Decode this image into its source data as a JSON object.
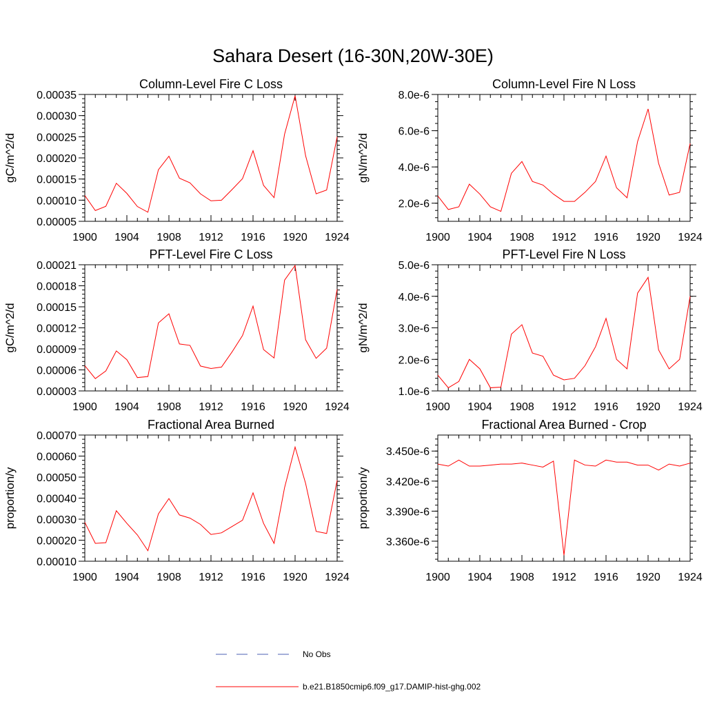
{
  "figure": {
    "title": "Sahara Desert (16-30N,20W-30E)"
  },
  "legend": {
    "items": [
      {
        "label": "No Obs",
        "color": "#4a5fb3",
        "style": "dashed"
      },
      {
        "label": "b.e21.B1850cmip6.f09_g17.DAMIP-hist-ghg.002",
        "color": "#ff0000",
        "style": "solid"
      }
    ]
  },
  "chart_data": [
    {
      "type": "line",
      "title": "Column-Level Fire C Loss",
      "ylabel": "gC/m^2/d",
      "xlim": [
        1900,
        1924
      ],
      "ylim": [
        5e-05,
        0.00035
      ],
      "xticks": [
        1900,
        1904,
        1908,
        1912,
        1916,
        1920,
        1924
      ],
      "yticks": [
        5e-05,
        0.0001,
        0.00015,
        0.0002,
        0.00025,
        0.0003,
        0.00035
      ],
      "ytick_labels": [
        "0.00005",
        "0.00010",
        "0.00015",
        "0.00020",
        "0.00025",
        "0.00030",
        "0.00035"
      ],
      "x": [
        1900,
        1901,
        1902,
        1903,
        1904,
        1905,
        1906,
        1907,
        1908,
        1909,
        1910,
        1911,
        1912,
        1913,
        1914,
        1915,
        1916,
        1917,
        1918,
        1919,
        1920,
        1921,
        1922,
        1923,
        1924
      ],
      "series": [
        {
          "name": "b.e21.B1850cmip6.f09_g17.DAMIP-hist-ghg.002",
          "color": "#ff0000",
          "values": [
            0.000111,
            7.55e-05,
            8.55e-05,
            0.00014,
            0.000116,
            8.5e-05,
            7.15e-05,
            0.000172,
            0.000204,
            0.000152,
            0.000141,
            0.000115,
            9.85e-05,
            0.0001,
            0.000125,
            0.000151,
            0.000217,
            0.000135,
            0.000106,
            0.000256,
            0.000347,
            0.000205,
            0.000115,
            0.000124,
            0.00025
          ]
        }
      ]
    },
    {
      "type": "line",
      "title": "Column-Level Fire N Loss",
      "ylabel": "gN/m^2/d",
      "xlim": [
        1900,
        1924
      ],
      "ylim": [
        1e-06,
        8e-06
      ],
      "xticks": [
        1900,
        1904,
        1908,
        1912,
        1916,
        1920,
        1924
      ],
      "yticks": [
        2e-06,
        4e-06,
        6e-06,
        8e-06
      ],
      "ytick_labels": [
        "2.0e-6",
        "4.0e-6",
        "6.0e-6",
        "8.0e-6"
      ],
      "x": [
        1900,
        1901,
        1902,
        1903,
        1904,
        1905,
        1906,
        1907,
        1908,
        1909,
        1910,
        1911,
        1912,
        1913,
        1914,
        1915,
        1916,
        1917,
        1918,
        1919,
        1920,
        1921,
        1922,
        1923,
        1924
      ],
      "series": [
        {
          "name": "b.e21.B1850cmip6.f09_g17.DAMIP-hist-ghg.002",
          "color": "#ff0000",
          "values": [
            2.4e-06,
            1.65e-06,
            1.8e-06,
            3.05e-06,
            2.5e-06,
            1.8e-06,
            1.55e-06,
            3.65e-06,
            4.3e-06,
            3.2e-06,
            3e-06,
            2.5e-06,
            2.1e-06,
            2.1e-06,
            2.6e-06,
            3.2e-06,
            4.6e-06,
            2.85e-06,
            2.3e-06,
            5.4e-06,
            7.2e-06,
            4.2e-06,
            2.45e-06,
            2.6e-06,
            5.3e-06
          ]
        }
      ]
    },
    {
      "type": "line",
      "title": "PFT-Level Fire C Loss",
      "ylabel": "gC/m^2/d",
      "xlim": [
        1900,
        1924
      ],
      "ylim": [
        3e-05,
        0.00021
      ],
      "xticks": [
        1900,
        1904,
        1908,
        1912,
        1916,
        1920,
        1924
      ],
      "yticks": [
        3e-05,
        6e-05,
        9e-05,
        0.00012,
        0.00015,
        0.00018,
        0.00021
      ],
      "ytick_labels": [
        "0.00003",
        "0.00006",
        "0.00009",
        "0.00012",
        "0.00015",
        "0.00018",
        "0.00021"
      ],
      "x": [
        1900,
        1901,
        1902,
        1903,
        1904,
        1905,
        1906,
        1907,
        1908,
        1909,
        1910,
        1911,
        1912,
        1913,
        1914,
        1915,
        1916,
        1917,
        1918,
        1919,
        1920,
        1921,
        1922,
        1923,
        1924
      ],
      "series": [
        {
          "name": "b.e21.B1850cmip6.f09_g17.DAMIP-hist-ghg.002",
          "color": "#ff0000",
          "values": [
            6.6e-05,
            4.75e-05,
            5.85e-05,
            8.7e-05,
            7.45e-05,
            4.9e-05,
            5.05e-05,
            0.000127,
            0.00014,
            9.7e-05,
            9.5e-05,
            6.55e-05,
            6.2e-05,
            6.4e-05,
            8.55e-05,
            0.000109,
            0.000151,
            8.9e-05,
            7.7e-05,
            0.000188,
            0.000209,
            0.000103,
            7.65e-05,
            9.1e-05,
            0.000175
          ]
        }
      ]
    },
    {
      "type": "line",
      "title": "PFT-Level Fire N Loss",
      "ylabel": "gN/m^2/d",
      "xlim": [
        1900,
        1924
      ],
      "ylim": [
        1e-06,
        5e-06
      ],
      "xticks": [
        1900,
        1904,
        1908,
        1912,
        1916,
        1920,
        1924
      ],
      "yticks": [
        1e-06,
        2e-06,
        3e-06,
        4e-06,
        5e-06
      ],
      "ytick_labels": [
        "1.0e-6",
        "2.0e-6",
        "3.0e-6",
        "4.0e-6",
        "5.0e-6"
      ],
      "x": [
        1900,
        1901,
        1902,
        1903,
        1904,
        1905,
        1906,
        1907,
        1908,
        1909,
        1910,
        1911,
        1912,
        1913,
        1914,
        1915,
        1916,
        1917,
        1918,
        1919,
        1920,
        1921,
        1922,
        1923,
        1924
      ],
      "series": [
        {
          "name": "b.e21.B1850cmip6.f09_g17.DAMIP-hist-ghg.002",
          "color": "#ff0000",
          "values": [
            1.5e-06,
            1.1e-06,
            1.3e-06,
            2e-06,
            1.7e-06,
            1.1e-06,
            1.12e-06,
            2.8e-06,
            3.1e-06,
            2.2e-06,
            2.1e-06,
            1.5e-06,
            1.35e-06,
            1.4e-06,
            1.8e-06,
            2.4e-06,
            3.3e-06,
            2e-06,
            1.7e-06,
            4.1e-06,
            4.6e-06,
            2.3e-06,
            1.7e-06,
            2e-06,
            4e-06
          ]
        }
      ]
    },
    {
      "type": "line",
      "title": "Fractional Area Burned",
      "ylabel": "proportion/y",
      "xlim": [
        1900,
        1924
      ],
      "ylim": [
        0.0001,
        0.0007
      ],
      "xticks": [
        1900,
        1904,
        1908,
        1912,
        1916,
        1920,
        1924
      ],
      "yticks": [
        0.0001,
        0.0002,
        0.0003,
        0.0004,
        0.0005,
        0.0006,
        0.0007
      ],
      "ytick_labels": [
        "0.00010",
        "0.00020",
        "0.00030",
        "0.00040",
        "0.00050",
        "0.00060",
        "0.00070"
      ],
      "x": [
        1900,
        1901,
        1902,
        1903,
        1904,
        1905,
        1906,
        1907,
        1908,
        1909,
        1910,
        1911,
        1912,
        1913,
        1914,
        1915,
        1916,
        1917,
        1918,
        1919,
        1920,
        1921,
        1922,
        1923,
        1924
      ],
      "series": [
        {
          "name": "b.e21.B1850cmip6.f09_g17.DAMIP-hist-ghg.002",
          "color": "#ff0000",
          "values": [
            0.000285,
            0.000185,
            0.000188,
            0.00034,
            0.00028,
            0.000225,
            0.00015,
            0.000325,
            0.000398,
            0.00032,
            0.000305,
            0.000275,
            0.000227,
            0.000235,
            0.000265,
            0.000295,
            0.000425,
            0.00028,
            0.000185,
            0.00045,
            0.000643,
            0.00047,
            0.000242,
            0.000232,
            0.000485
          ]
        }
      ]
    },
    {
      "type": "line",
      "title": "Fractional Area Burned - Crop",
      "ylabel": "proportion/y",
      "xlim": [
        1900,
        1924
      ],
      "ylim": [
        3.34e-06,
        3.466e-06
      ],
      "xticks": [
        1900,
        1904,
        1908,
        1912,
        1916,
        1920,
        1924
      ],
      "yticks": [
        3.36e-06,
        3.39e-06,
        3.42e-06,
        3.45e-06
      ],
      "ytick_labels": [
        "3.360e-6",
        "3.390e-6",
        "3.420e-6",
        "3.450e-6"
      ],
      "x": [
        1900,
        1901,
        1902,
        1903,
        1904,
        1905,
        1906,
        1907,
        1908,
        1909,
        1910,
        1911,
        1912,
        1913,
        1914,
        1915,
        1916,
        1917,
        1918,
        1919,
        1920,
        1921,
        1922,
        1923,
        1924
      ],
      "series": [
        {
          "name": "b.e21.B1850cmip6.f09_g17.DAMIP-hist-ghg.002",
          "color": "#ff0000",
          "values": [
            3.437e-06,
            3.435e-06,
            3.441e-06,
            3.435e-06,
            3.435e-06,
            3.436e-06,
            3.437e-06,
            3.437e-06,
            3.438e-06,
            3.436e-06,
            3.434e-06,
            3.44e-06,
            3.346e-06,
            3.441e-06,
            3.436e-06,
            3.435e-06,
            3.441e-06,
            3.439e-06,
            3.439e-06,
            3.436e-06,
            3.436e-06,
            3.431e-06,
            3.437e-06,
            3.435e-06,
            3.438e-06
          ]
        }
      ]
    }
  ]
}
